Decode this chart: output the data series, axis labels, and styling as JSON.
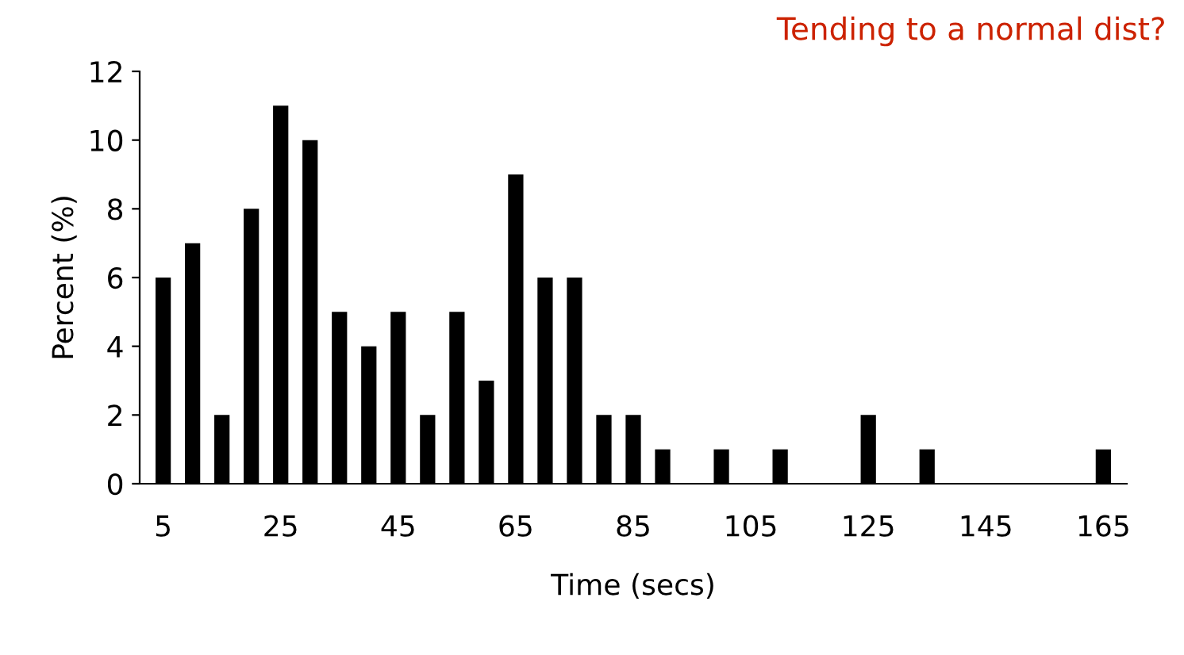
{
  "chart_data": {
    "type": "bar",
    "title": "Tending to a normal dist?",
    "xlabel": "Time (secs)",
    "ylabel": "Percent (%)",
    "categories": [
      "5",
      null,
      null,
      null,
      "25",
      null,
      null,
      null,
      "45",
      null,
      null,
      null,
      "65",
      null,
      null,
      null,
      "85",
      null,
      null,
      null,
      "105",
      null,
      null,
      null,
      "125",
      null,
      null,
      null,
      "145",
      null,
      null,
      null,
      "165"
    ],
    "values": [
      6,
      7,
      2,
      8,
      11,
      10,
      5,
      4,
      5,
      2,
      5,
      3,
      9,
      6,
      6,
      2,
      2,
      1,
      0,
      1,
      0,
      1,
      0,
      0,
      2,
      0,
      1,
      0,
      0,
      0,
      0,
      0,
      1
    ],
    "color": "#000000",
    "ylim": [
      0,
      12
    ],
    "yticks": [
      0,
      2,
      4,
      6,
      8,
      10,
      12
    ],
    "grid": false,
    "legend": false
  }
}
